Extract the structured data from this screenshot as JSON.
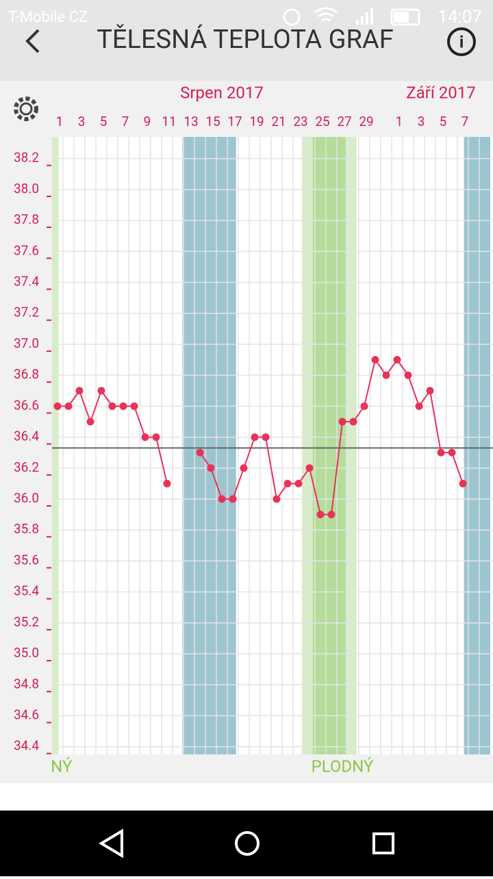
{
  "status_bar": {
    "carrier": "T-Mobile CZ",
    "time": "14:07"
  },
  "header": {
    "title": "TĚLESNÁ TEPLOTA GRAF"
  },
  "chart_data": {
    "type": "line",
    "months": [
      {
        "label": "Srpen 2017",
        "at": 15
      },
      {
        "label": "Září 2017",
        "at": 35
      }
    ],
    "categories": [
      "1",
      null,
      "3",
      null,
      "5",
      null,
      "7",
      null,
      "9",
      null,
      "11",
      null,
      "13",
      null,
      "15",
      null,
      "17",
      null,
      "19",
      null,
      "21",
      null,
      "23",
      null,
      "25",
      null,
      "27",
      null,
      "29",
      null,
      null,
      "1",
      null,
      "3",
      null,
      "5",
      null,
      "7",
      null
    ],
    "series": [
      {
        "name": "Teplota",
        "color": "#e8325a",
        "values": [
          36.6,
          36.6,
          36.7,
          36.5,
          36.7,
          36.6,
          36.6,
          36.6,
          36.4,
          36.4,
          36.1,
          null,
          null,
          36.3,
          36.2,
          36.0,
          36.0,
          36.2,
          36.4,
          36.4,
          36.0,
          36.1,
          36.1,
          36.2,
          35.9,
          35.9,
          36.5,
          36.5,
          36.6,
          36.9,
          36.8,
          36.9,
          36.8,
          36.6,
          36.7,
          36.3,
          36.3,
          36.1,
          null
        ]
      }
    ],
    "ylim": [
      34.35,
      38.34
    ],
    "yticks": [
      34.4,
      34.6,
      34.8,
      {
        "value": 35,
        "label": "35.0"
      },
      35.2,
      35.4,
      35.6,
      35.8,
      {
        "value": 36,
        "label": "36.0"
      },
      36.2,
      36.4,
      36.6,
      36.8,
      {
        "value": 37,
        "label": "37.0"
      },
      37.2,
      37.4,
      37.6,
      37.8,
      {
        "value": 38,
        "label": "38.0"
      },
      38.2
    ],
    "grid": true,
    "average_line": 36.33,
    "bands": [
      {
        "start": -0.5,
        "end": 0.1,
        "color": "#d7ecc9"
      },
      {
        "start": 11.4,
        "end": 16.3,
        "color": "#9dc5cf"
      },
      {
        "start": 22.3,
        "end": 27.3,
        "color": "#d7ecc9"
      },
      {
        "start": 23.3,
        "end": 26.3,
        "color": "#b5dc9a"
      },
      {
        "start": 37.1,
        "end": 39.5,
        "color": "#9dc5cf"
      }
    ],
    "fertile_labels": [
      {
        "text": "PLODNÝ",
        "at": -1.5
      },
      {
        "text": "PLODNÝ",
        "at": 26
      }
    ]
  }
}
